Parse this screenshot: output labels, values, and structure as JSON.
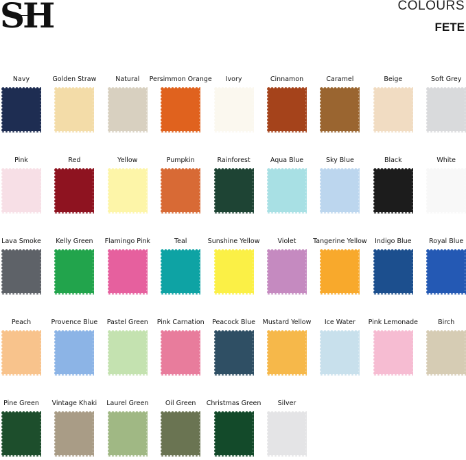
{
  "brand": {
    "logo": "SH"
  },
  "header": {
    "title": "COLOURS",
    "subtitle": "FETE"
  },
  "swatches": [
    {
      "name": "Navy",
      "color": "#1e2d52"
    },
    {
      "name": "Golden Straw",
      "color": "#f3dca8"
    },
    {
      "name": "Natural",
      "color": "#d8d0c0"
    },
    {
      "name": "Persimmon Orange",
      "color": "#e0621e"
    },
    {
      "name": "Ivory",
      "color": "#fbf8ef"
    },
    {
      "name": "Cinnamon",
      "color": "#a5431b"
    },
    {
      "name": "Caramel",
      "color": "#9a6530"
    },
    {
      "name": "Beige",
      "color": "#f1dcc2"
    },
    {
      "name": "Soft Grey",
      "color": "#d9dadc"
    },
    {
      "name": "Pink",
      "color": "#f7dfe6"
    },
    {
      "name": "Red",
      "color": "#8e1320"
    },
    {
      "name": "Yellow",
      "color": "#fdf5a8"
    },
    {
      "name": "Pumpkin",
      "color": "#d86a35"
    },
    {
      "name": "Rainforest",
      "color": "#1e4434"
    },
    {
      "name": "Aqua Blue",
      "color": "#a8e0e4"
    },
    {
      "name": "Sky Blue",
      "color": "#bcd6ee"
    },
    {
      "name": "Black",
      "color": "#1c1c1c"
    },
    {
      "name": "White",
      "color": "#f8f8f8"
    },
    {
      "name": "Lava Smoke",
      "color": "#5e6268"
    },
    {
      "name": "Kelly Green",
      "color": "#22a44c"
    },
    {
      "name": "Flamingo Pink",
      "color": "#e6609e"
    },
    {
      "name": "Teal",
      "color": "#0ea3a4"
    },
    {
      "name": "Sunshine Yellow",
      "color": "#fbf046"
    },
    {
      "name": "Violet",
      "color": "#c58ac0"
    },
    {
      "name": "Tangerine Yellow",
      "color": "#f8a92c"
    },
    {
      "name": "Indigo Blue",
      "color": "#1c4f8e"
    },
    {
      "name": "Royal Blue",
      "color": "#2459b4"
    },
    {
      "name": "Peach",
      "color": "#f8c38c"
    },
    {
      "name": "Provence Blue",
      "color": "#8cb4e6"
    },
    {
      "name": "Pastel Green",
      "color": "#c4e2b0"
    },
    {
      "name": "Pink Carnation",
      "color": "#e87c9c"
    },
    {
      "name": "Peacock Blue",
      "color": "#2f4f64"
    },
    {
      "name": "Mustard Yellow",
      "color": "#f6b84a"
    },
    {
      "name": "Ice Water",
      "color": "#c8e0ec"
    },
    {
      "name": "Pink Lemonade",
      "color": "#f6bcd2"
    },
    {
      "name": "Birch",
      "color": "#d6ccb4"
    },
    {
      "name": "Pine Green",
      "color": "#1d4e2c"
    },
    {
      "name": "Vintage Khaki",
      "color": "#a99c86"
    },
    {
      "name": "Laurel Green",
      "color": "#a0b884"
    },
    {
      "name": "Oil Green",
      "color": "#6a7452"
    },
    {
      "name": "Christmas Green",
      "color": "#134a2a"
    },
    {
      "name": "Silver",
      "color": "#e4e4e6"
    }
  ]
}
